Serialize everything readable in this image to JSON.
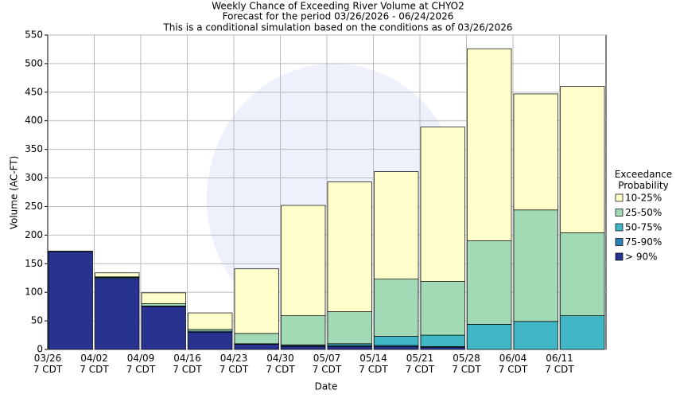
{
  "chart_data": {
    "type": "stacked_bar",
    "title": "Weekly Chance of Exceeding River Volume at CHYO2",
    "subtitle": "Forecast for the period 03/26/2026 - 06/24/2026",
    "note": "This is a conditional simulation based on the conditions as of 03/26/2026",
    "xlabel": "Date",
    "ylabel": "Volume (AC-FT)",
    "legend_title": "Exceedance\nProbability",
    "categories": [
      "03/26\n7 CDT",
      "04/02\n7 CDT",
      "04/09\n7 CDT",
      "04/16\n7 CDT",
      "04/23\n7 CDT",
      "04/30\n7 CDT",
      "05/07\n7 CDT",
      "05/14\n7 CDT",
      "05/21\n7 CDT",
      "05/28\n7 CDT",
      "06/04\n7 CDT",
      "06/11\n7 CDT"
    ],
    "series": [
      {
        "name": "> 90%",
        "color": "#27338f",
        "values": [
          171,
          124,
          75,
          30,
          9,
          5,
          5,
          5,
          4,
          0,
          0,
          0
        ]
      },
      {
        "name": "75-90%",
        "color": "#2c7fb8",
        "values": [
          1,
          2,
          1,
          2,
          1,
          2,
          2,
          2,
          1,
          0,
          0,
          0
        ]
      },
      {
        "name": "50-75%",
        "color": "#41b6c4",
        "values": [
          0,
          0,
          0,
          0,
          0,
          1,
          3,
          16,
          20,
          44,
          49,
          59
        ]
      },
      {
        "name": "25-50%",
        "color": "#a1dab4",
        "values": [
          0,
          1,
          4,
          3,
          18,
          51,
          56,
          100,
          94,
          146,
          195,
          145
        ]
      },
      {
        "name": "10-25%",
        "color": "#ffffcc",
        "values": [
          0,
          7,
          19,
          29,
          113,
          193,
          227,
          188,
          270,
          336,
          203,
          256
        ]
      }
    ],
    "ylim": [
      0,
      550
    ],
    "yticks": [
      0,
      50,
      100,
      150,
      200,
      250,
      300,
      350,
      400,
      450,
      500,
      550
    ],
    "grid": true,
    "legend": "right"
  }
}
